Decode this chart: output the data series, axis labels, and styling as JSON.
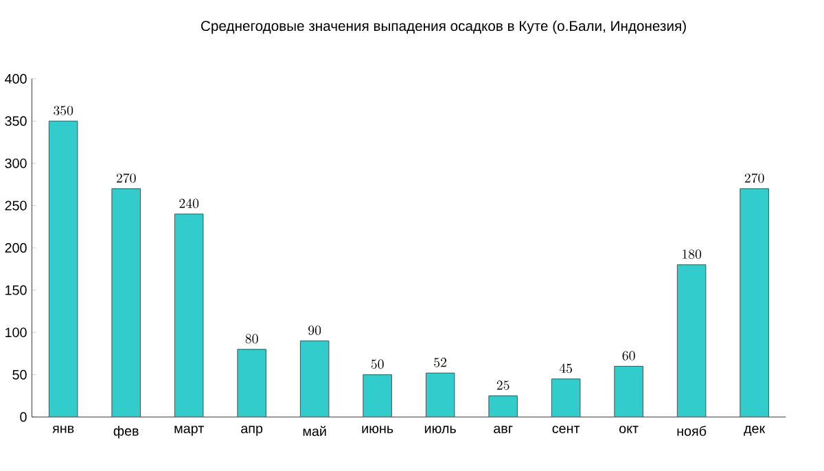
{
  "chart_data": {
    "type": "bar",
    "title": "Среднегодовые значения выпадения осадков в Куте (о.Бали, Индонезия)",
    "categories": [
      "янв",
      "фев",
      "март",
      "апр",
      "май",
      "июнь",
      "июль",
      "авг",
      "сент",
      "окт",
      "нояб",
      "дек"
    ],
    "values": [
      350,
      270,
      240,
      80,
      90,
      50,
      52,
      25,
      45,
      60,
      180,
      270
    ],
    "color": "#33cccc",
    "ylim": [
      0,
      400
    ],
    "yticks": [
      0,
      50,
      100,
      150,
      200,
      250,
      300,
      350,
      400
    ],
    "data_labels": true,
    "grid": false
  }
}
